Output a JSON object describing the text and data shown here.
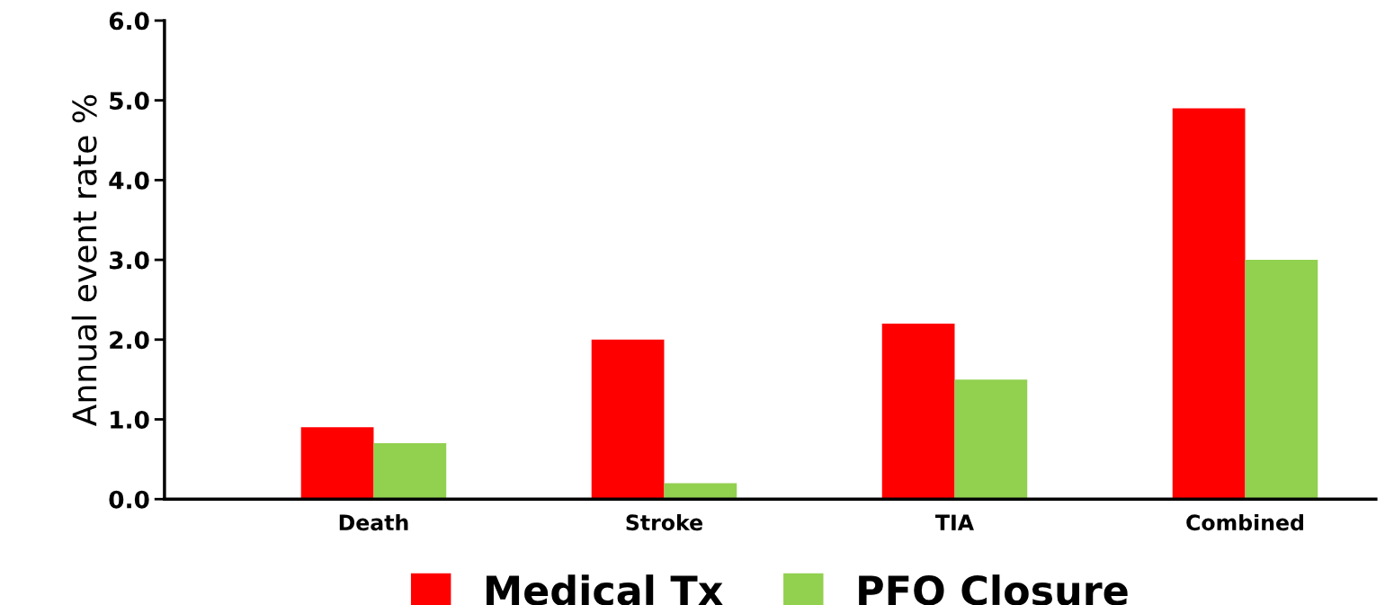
{
  "chart_data": {
    "type": "bar",
    "ylabel": "Annual event rate %",
    "categories": [
      "Death",
      "Stroke",
      "TIA",
      "Combined"
    ],
    "series": [
      {
        "name": "Medical Tx",
        "color": "#ff0000",
        "values": [
          0.9,
          2.0,
          2.2,
          4.9
        ]
      },
      {
        "name": "PFO Closure",
        "color": "#92d050",
        "values": [
          0.7,
          0.2,
          1.5,
          3.0
        ]
      }
    ],
    "ylim": [
      0,
      6
    ],
    "yticks": [
      {
        "value": 0,
        "label": "0.0"
      },
      {
        "value": 1,
        "label": "1.0"
      },
      {
        "value": 2,
        "label": "2.0"
      },
      {
        "value": 3,
        "label": "3.0"
      },
      {
        "value": 4,
        "label": "4.0"
      },
      {
        "value": 5,
        "label": "5.0"
      },
      {
        "value": 6,
        "label": "6.0"
      }
    ],
    "grid": false,
    "legend": "bottom"
  }
}
